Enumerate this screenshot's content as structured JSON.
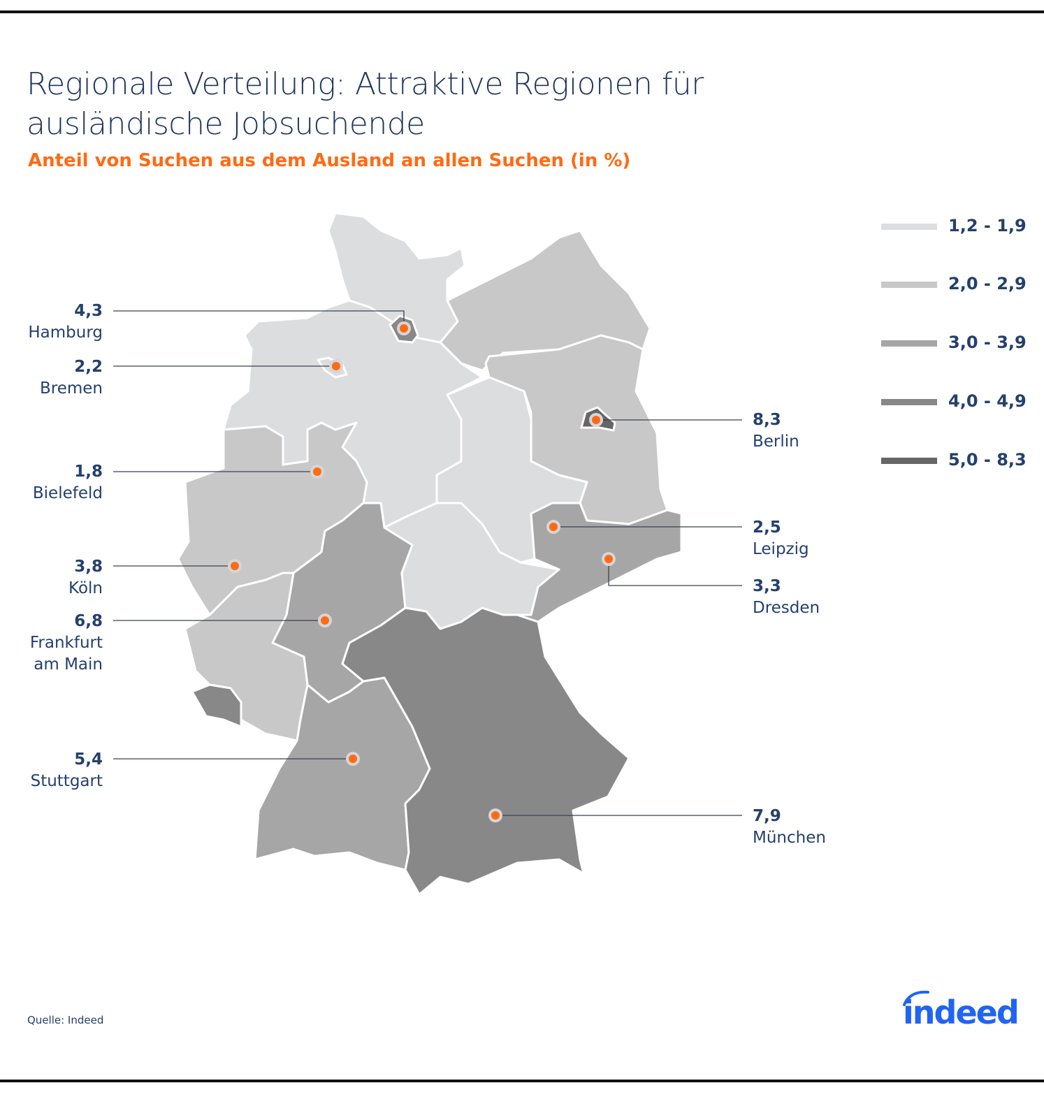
{
  "title": "Regionale Verteilung: Attraktive Regionen für ausländische Jobsuchende",
  "subtitle": "Anteil von Suchen aus dem Ausland an allen Suchen (in %)",
  "source": "Quelle: Indeed",
  "logo": "indeed",
  "colors": {
    "title": "#22385f",
    "text": "#24406e",
    "accent": "#ff6a13",
    "logo": "#2164f3",
    "border": "#ffffff"
  },
  "legend": [
    {
      "label": "1,2 - 1,9",
      "color": "#dcdddf"
    },
    {
      "label": "2,0 - 2,9",
      "color": "#c8c8c8"
    },
    {
      "label": "3,0 - 3,9",
      "color": "#a6a6a6"
    },
    {
      "label": "4,0 - 4,9",
      "color": "#888888"
    },
    {
      "label": "5,0 - 8,3",
      "color": "#666666"
    }
  ],
  "regions_bins": [
    0,
    3,
    1,
    1,
    4,
    0,
    0,
    0,
    1,
    2,
    0,
    2,
    1,
    3,
    2,
    3
  ],
  "cities": [
    {
      "name": "Hamburg",
      "value": "4,3",
      "side": "left"
    },
    {
      "name": "Bremen",
      "value": "2,2",
      "side": "left"
    },
    {
      "name": "Bielefeld",
      "value": "1,8",
      "side": "left"
    },
    {
      "name": "Köln",
      "value": "3,8",
      "side": "left"
    },
    {
      "name": "Frankfurt am Main",
      "value": "6,8",
      "side": "left"
    },
    {
      "name": "Stuttgart",
      "value": "5,4",
      "side": "left"
    },
    {
      "name": "Berlin",
      "value": "8,3",
      "side": "right"
    },
    {
      "name": "Leipzig",
      "value": "2,5",
      "side": "right"
    },
    {
      "name": "Dresden",
      "value": "3,3",
      "side": "right"
    },
    {
      "name": "München",
      "value": "7,9",
      "side": "right"
    }
  ]
}
